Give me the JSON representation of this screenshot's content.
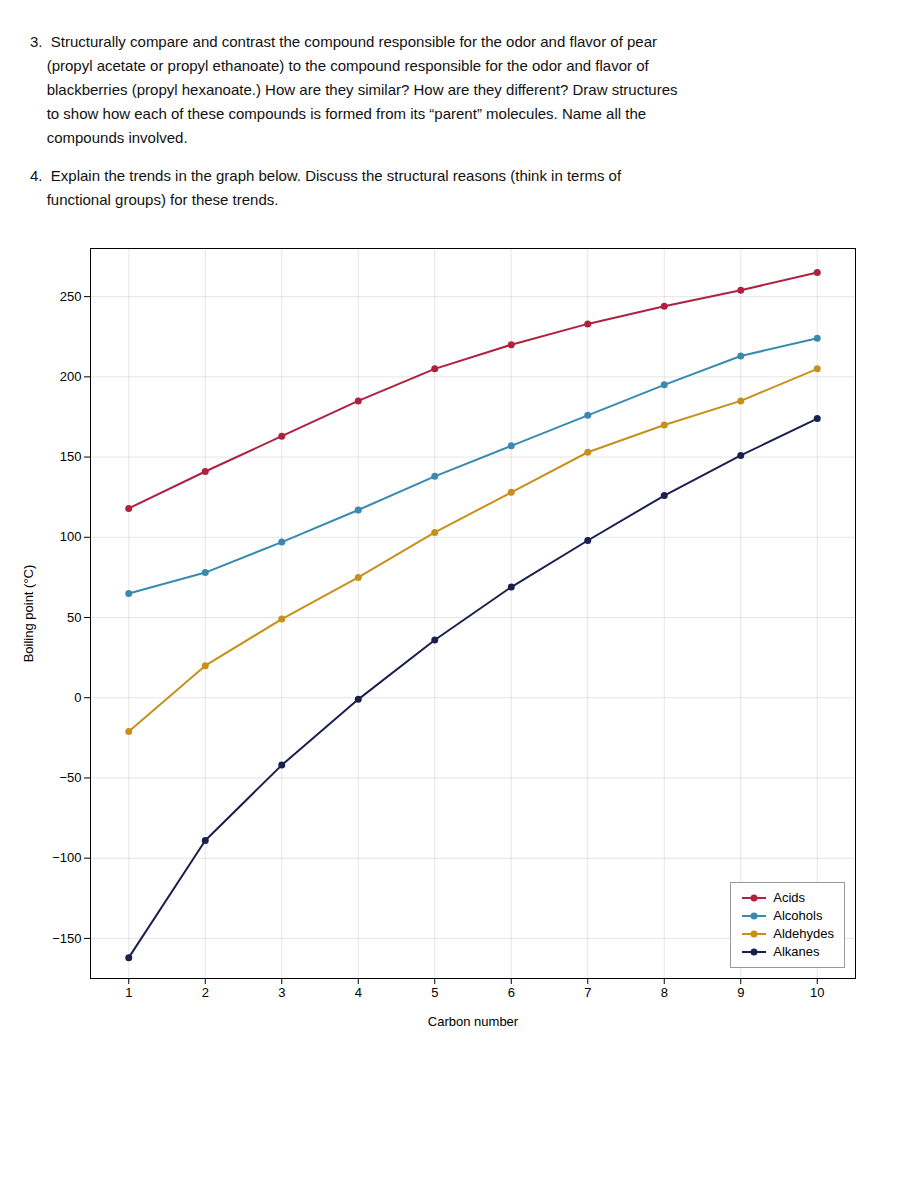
{
  "chart_data": {
    "type": "line",
    "annotations": [
      "3.  Structurally compare and contrast the compound responsible for the odor and flavor of pear",
      "    (propyl acetate or propyl ethanoate) to the compound responsible for the odor and flavor of",
      "    blackberries (propyl hexanoate.) How are they similar? How are they different? Draw structures",
      "    to show how each of these compounds is formed from its “parent” molecules. Name all the",
      "    compounds involved.",
      "4.  Explain the trends in the graph below. Discuss the structural reasons (think in terms of",
      "    functional groups) for these trends."
    ],
    "xlabel": "Carbon number",
    "ylabel": "Boiling point (°C)",
    "x": [
      1,
      2,
      3,
      4,
      5,
      6,
      7,
      8,
      9,
      10
    ],
    "series": [
      {
        "name": "Acids",
        "color": "#b02040",
        "values": [
          118,
          141,
          163,
          185,
          205,
          220,
          233,
          244,
          254,
          265
        ]
      },
      {
        "name": "Alcohols",
        "color": "#3a8ab0",
        "values": [
          65,
          78,
          97,
          117,
          138,
          157,
          176,
          195,
          213,
          224
        ]
      },
      {
        "name": "Aldehydes",
        "color": "#c8901a",
        "values": [
          -21,
          20,
          49,
          75,
          103,
          128,
          153,
          170,
          185,
          205
        ]
      },
      {
        "name": "Alkanes",
        "color": "#1a1f50",
        "values": [
          -162,
          -89,
          -42,
          -1,
          36,
          69,
          98,
          126,
          151,
          174
        ]
      }
    ],
    "xlim": [
      0.5,
      10.5
    ],
    "xticks": [
      1,
      2,
      3,
      4,
      5,
      6,
      7,
      8,
      9,
      10
    ],
    "ylim": [
      -175,
      280
    ],
    "yticks": [
      -150,
      -100,
      -50,
      0,
      50,
      100,
      150,
      200,
      250
    ],
    "grid": true,
    "legend": "lower right",
    "marker": "circle"
  }
}
